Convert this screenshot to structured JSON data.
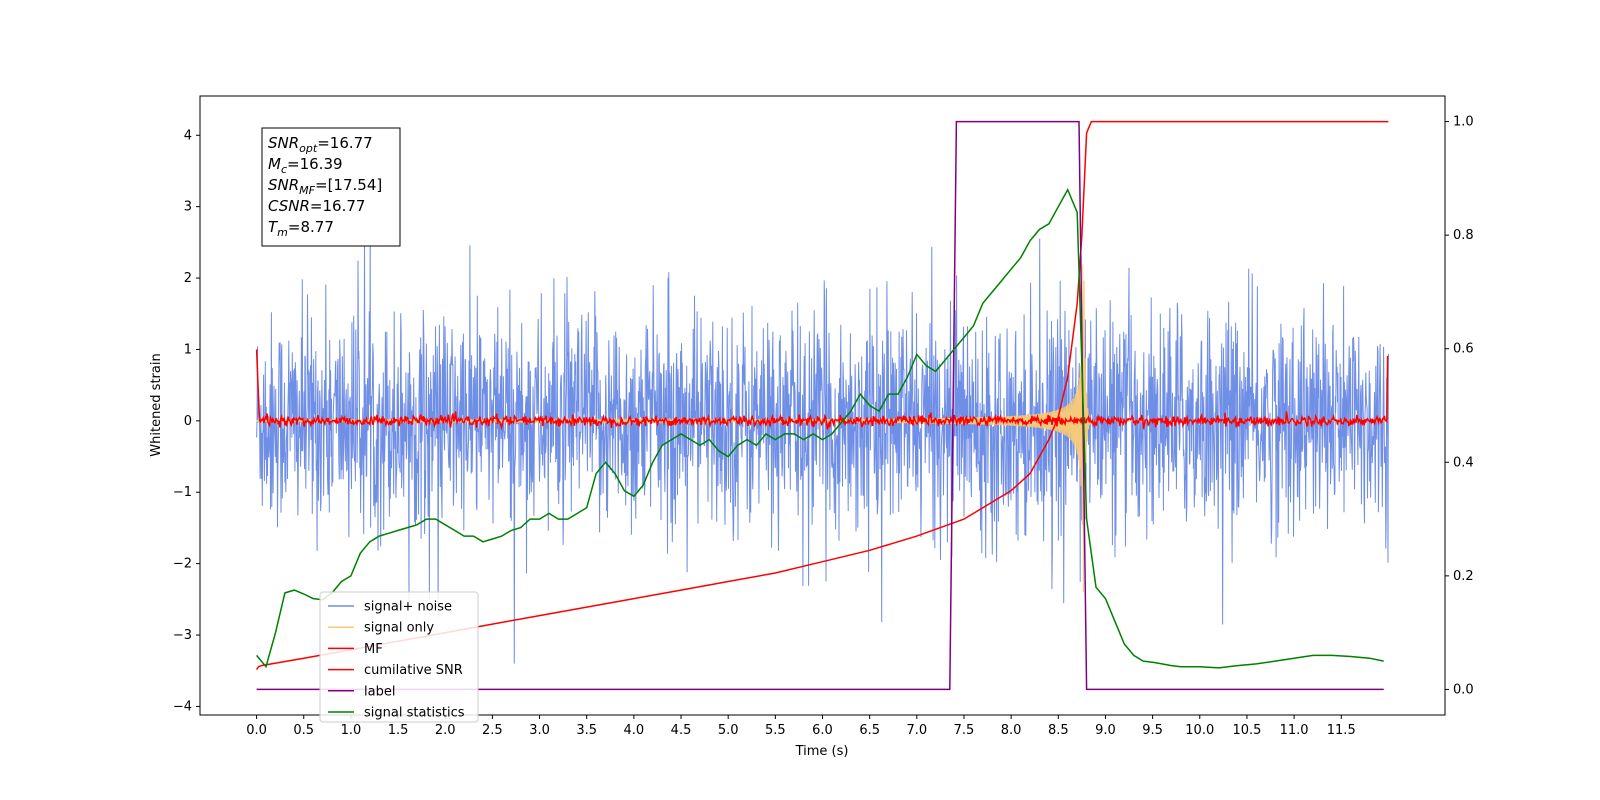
{
  "chart_data": {
    "type": "line",
    "xlabel": "Time (s)",
    "ylabel": "Whitened strain",
    "xlim": [
      -0.6,
      12.6
    ],
    "ylim_left": [
      -4.12,
      4.55
    ],
    "ylim_right": [
      -0.045,
      1.045
    ],
    "x_ticks": [
      0.0,
      0.5,
      1.0,
      1.5,
      2.0,
      2.5,
      3.0,
      3.5,
      4.0,
      4.5,
      5.0,
      5.5,
      6.0,
      6.5,
      7.0,
      7.5,
      8.0,
      8.5,
      9.0,
      9.5,
      10.0,
      10.5,
      11.0,
      11.5
    ],
    "x_tick_labels": [
      "0.0",
      "0.5",
      "1.0",
      "1.5",
      "2.0",
      "2.5",
      "3.0",
      "3.5",
      "4.0",
      "4.5",
      "5.0",
      "5.5",
      "6.0",
      "6.5",
      "7.0",
      "7.5",
      "8.0",
      "8.5",
      "9.0",
      "9.5",
      "10.0",
      "10.5",
      "11.0",
      "11.5"
    ],
    "y_left_ticks": [
      -4,
      -3,
      -2,
      -1,
      0,
      1,
      2,
      3,
      4
    ],
    "y_left_tick_labels": [
      "−4",
      "−3",
      "−2",
      "−1",
      "0",
      "1",
      "2",
      "3",
      "4"
    ],
    "y_right_ticks": [
      0.0,
      0.2,
      0.4,
      0.6,
      0.8,
      1.0
    ],
    "y_right_tick_labels": [
      "0.0",
      "0.2",
      "0.4",
      "0.6",
      "0.8",
      "1.0"
    ],
    "grid": false,
    "legend_position": "lower-left",
    "info_box": {
      "lines": [
        {
          "base": "SNR",
          "sub": "opt",
          "rest": "=16.77"
        },
        {
          "base": "M",
          "sub": "c",
          "rest": "=16.39"
        },
        {
          "base": "SNR",
          "sub": "MF",
          "rest": "=[17.54]"
        },
        {
          "base": "CSNR",
          "sub": "",
          "rest": "=16.77"
        },
        {
          "base": "T",
          "sub": "m",
          "rest": "=8.77"
        }
      ]
    },
    "series": [
      {
        "name": "signal+ noise",
        "color": "#6f8ee6",
        "axis": "left",
        "description": "noise around 0, amplitude about 1.5"
      },
      {
        "name": "signal only",
        "color": "#f5c97a",
        "axis": "left",
        "description": "chirp growing to merger at about 8.77 s"
      },
      {
        "name": "MF",
        "color": "#ff0000",
        "axis": "left",
        "description": "matched filter output near 0"
      },
      {
        "name": "cumilative SNR",
        "color": "#ff0000",
        "axis": "right",
        "x": [
          0.0,
          0.02,
          0.05,
          0.5,
          1.0,
          1.5,
          2.0,
          2.5,
          3.0,
          3.5,
          4.0,
          4.5,
          5.0,
          5.5,
          6.0,
          6.5,
          7.0,
          7.5,
          8.0,
          8.2,
          8.4,
          8.5,
          8.6,
          8.7,
          8.75,
          8.8,
          8.85,
          9.0,
          10.0,
          11.0,
          11.9,
          12.0
        ],
        "y": [
          0.035,
          0.04,
          0.042,
          0.055,
          0.07,
          0.085,
          0.1,
          0.115,
          0.13,
          0.145,
          0.16,
          0.175,
          0.19,
          0.205,
          0.225,
          0.245,
          0.27,
          0.3,
          0.35,
          0.38,
          0.44,
          0.48,
          0.55,
          0.68,
          0.8,
          0.98,
          1.0,
          1.0,
          1.0,
          1.0,
          1.0,
          1.0
        ]
      },
      {
        "name": "label",
        "color": "#800080",
        "axis": "right",
        "x": [
          0.0,
          7.35,
          7.42,
          8.72,
          8.8,
          11.95
        ],
        "y": [
          0.0,
          0.0,
          1.0,
          1.0,
          0.0,
          0.0
        ]
      },
      {
        "name": "signal statistics",
        "color": "#008000",
        "axis": "right",
        "x": [
          0.0,
          0.1,
          0.2,
          0.3,
          0.4,
          0.5,
          0.6,
          0.7,
          0.8,
          0.9,
          1.0,
          1.1,
          1.2,
          1.3,
          1.4,
          1.5,
          1.6,
          1.7,
          1.8,
          1.9,
          2.0,
          2.1,
          2.2,
          2.3,
          2.4,
          2.5,
          2.6,
          2.7,
          2.8,
          2.9,
          3.0,
          3.1,
          3.2,
          3.3,
          3.4,
          3.5,
          3.6,
          3.7,
          3.8,
          3.9,
          4.0,
          4.1,
          4.2,
          4.3,
          4.4,
          4.5,
          4.6,
          4.7,
          4.8,
          4.9,
          5.0,
          5.1,
          5.2,
          5.3,
          5.4,
          5.5,
          5.6,
          5.7,
          5.8,
          5.9,
          6.0,
          6.1,
          6.2,
          6.3,
          6.4,
          6.5,
          6.6,
          6.7,
          6.8,
          6.9,
          7.0,
          7.1,
          7.2,
          7.3,
          7.4,
          7.5,
          7.6,
          7.7,
          7.8,
          7.9,
          8.0,
          8.1,
          8.2,
          8.3,
          8.4,
          8.5,
          8.6,
          8.7,
          8.8,
          8.9,
          9.0,
          9.1,
          9.2,
          9.3,
          9.4,
          9.5,
          9.6,
          9.7,
          9.8,
          9.9,
          10.0,
          10.2,
          10.4,
          10.6,
          10.8,
          11.0,
          11.2,
          11.4,
          11.6,
          11.8,
          11.95
        ],
        "y": [
          0.06,
          0.04,
          0.1,
          0.17,
          0.175,
          0.168,
          0.16,
          0.158,
          0.17,
          0.19,
          0.2,
          0.24,
          0.26,
          0.27,
          0.275,
          0.28,
          0.285,
          0.29,
          0.3,
          0.3,
          0.29,
          0.28,
          0.27,
          0.27,
          0.26,
          0.265,
          0.27,
          0.28,
          0.285,
          0.3,
          0.3,
          0.31,
          0.3,
          0.3,
          0.31,
          0.32,
          0.38,
          0.4,
          0.38,
          0.35,
          0.34,
          0.36,
          0.4,
          0.43,
          0.44,
          0.45,
          0.44,
          0.43,
          0.44,
          0.42,
          0.41,
          0.43,
          0.44,
          0.43,
          0.45,
          0.44,
          0.45,
          0.45,
          0.44,
          0.45,
          0.44,
          0.45,
          0.47,
          0.49,
          0.52,
          0.5,
          0.49,
          0.52,
          0.52,
          0.55,
          0.59,
          0.57,
          0.56,
          0.58,
          0.6,
          0.62,
          0.64,
          0.68,
          0.7,
          0.72,
          0.74,
          0.76,
          0.79,
          0.81,
          0.82,
          0.85,
          0.88,
          0.84,
          0.3,
          0.18,
          0.16,
          0.12,
          0.08,
          0.06,
          0.05,
          0.048,
          0.045,
          0.042,
          0.04,
          0.04,
          0.04,
          0.038,
          0.042,
          0.045,
          0.05,
          0.055,
          0.06,
          0.06,
          0.058,
          0.055,
          0.05
        ]
      }
    ]
  }
}
